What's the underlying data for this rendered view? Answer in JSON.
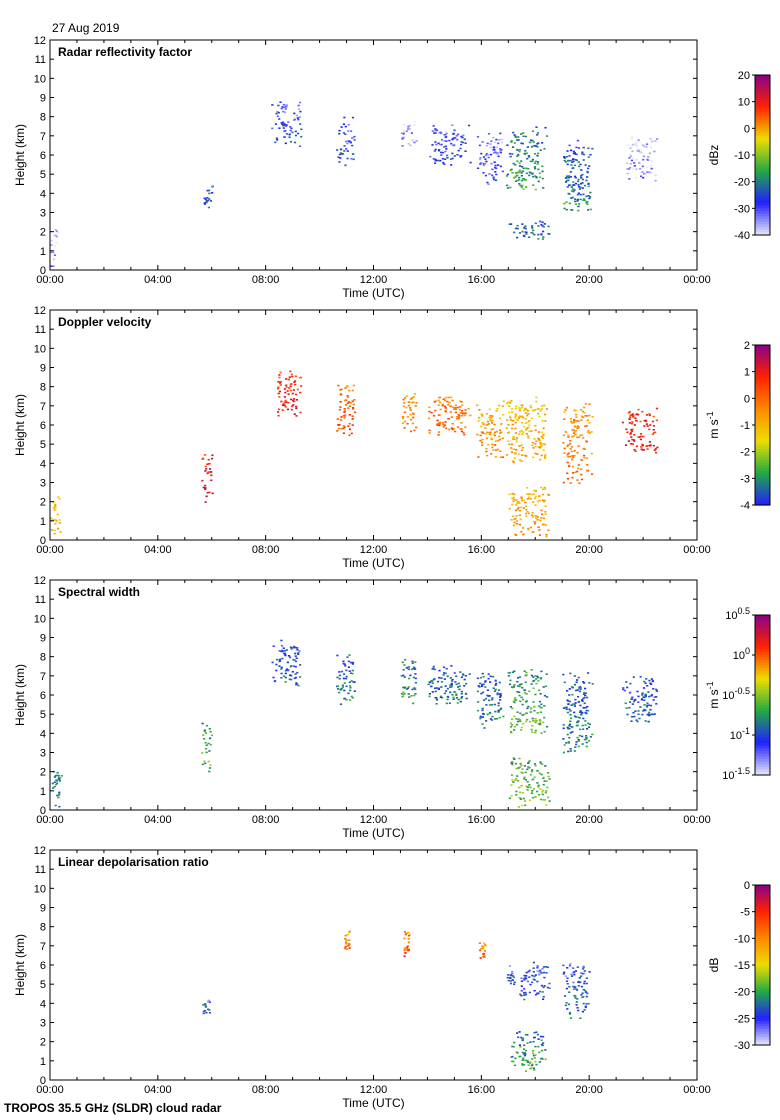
{
  "date_label": "27 Aug 2019",
  "footer": "TROPOS 35.5 GHz (SLDR) cloud radar",
  "chart_data": [
    {
      "type": "heatmap",
      "title": "Radar reflectivity factor",
      "xlabel": "Time (UTC)",
      "ylabel": "Height (km)",
      "xlim": [
        0,
        24
      ],
      "ylim": [
        0,
        12
      ],
      "xticks": [
        "00:00",
        "04:00",
        "08:00",
        "12:00",
        "16:00",
        "20:00",
        "00:00"
      ],
      "yticks": [
        "0",
        "1",
        "2",
        "3",
        "4",
        "5",
        "6",
        "7",
        "8",
        "9",
        "10",
        "11",
        "12"
      ],
      "colorbar": {
        "unit": "dBz",
        "ticks": [
          "20",
          "10",
          "0",
          "-10",
          "-20",
          "-30",
          "-40"
        ],
        "min": -40,
        "max": 20,
        "palette": [
          "#e8e8f8",
          "#2020ff",
          "#22aa44",
          "#eedd00",
          "#ff2200",
          "#880088"
        ]
      },
      "features": [
        {
          "t0": 0.0,
          "t1": 0.3,
          "h0": 0.2,
          "h1": 2.2,
          "v": 0.05
        },
        {
          "t0": 5.6,
          "t1": 6.0,
          "h0": 3.3,
          "h1": 4.5,
          "v": 0.25
        },
        {
          "t0": 8.2,
          "t1": 9.3,
          "h0": 6.5,
          "h1": 8.8,
          "v": 0.2
        },
        {
          "t0": 10.6,
          "t1": 11.3,
          "h0": 5.5,
          "h1": 8.0,
          "v": 0.2
        },
        {
          "t0": 13.0,
          "t1": 13.6,
          "h0": 6.5,
          "h1": 7.8,
          "v": 0.1
        },
        {
          "t0": 14.0,
          "t1": 15.6,
          "h0": 5.5,
          "h1": 7.6,
          "v": 0.2
        },
        {
          "t0": 15.8,
          "t1": 16.8,
          "h0": 4.5,
          "h1": 7.2,
          "v": 0.15
        },
        {
          "t0": 16.9,
          "t1": 18.4,
          "h0": 4.2,
          "h1": 7.5,
          "v": 0.35
        },
        {
          "t0": 17.0,
          "t1": 18.5,
          "h0": 1.6,
          "h1": 2.6,
          "v": 0.3
        },
        {
          "t0": 19.0,
          "t1": 20.1,
          "h0": 3.0,
          "h1": 6.8,
          "v": 0.3
        },
        {
          "t0": 21.2,
          "t1": 22.5,
          "h0": 4.7,
          "h1": 7.0,
          "v": 0.05
        }
      ]
    },
    {
      "type": "heatmap",
      "title": "Doppler velocity",
      "xlabel": "Time (UTC)",
      "ylabel": "Height (km)",
      "xlim": [
        0,
        24
      ],
      "ylim": [
        0,
        12
      ],
      "xticks": [
        "00:00",
        "04:00",
        "08:00",
        "12:00",
        "16:00",
        "20:00",
        "00:00"
      ],
      "yticks": [
        "0",
        "1",
        "2",
        "3",
        "4",
        "5",
        "6",
        "7",
        "8",
        "9",
        "10",
        "11",
        "12"
      ],
      "colorbar": {
        "unit": "m s-1",
        "ticks": [
          "2",
          "1",
          "0",
          "-1",
          "-2",
          "-3",
          "-4"
        ],
        "min": -4,
        "max": 2,
        "palette": [
          "#2020ff",
          "#22aa44",
          "#eedd00",
          "#ff8800",
          "#ff2200",
          "#880088"
        ]
      },
      "features": [
        {
          "t0": 0.0,
          "t1": 0.4,
          "h0": 0.2,
          "h1": 2.3,
          "v": 0.5
        },
        {
          "t0": 5.6,
          "t1": 6.0,
          "h0": 2.0,
          "h1": 4.6,
          "v": 0.85
        },
        {
          "t0": 8.2,
          "t1": 9.3,
          "h0": 6.5,
          "h1": 8.9,
          "v": 0.8
        },
        {
          "t0": 10.6,
          "t1": 11.3,
          "h0": 5.5,
          "h1": 8.2,
          "v": 0.7
        },
        {
          "t0": 13.0,
          "t1": 13.6,
          "h0": 5.6,
          "h1": 7.9,
          "v": 0.6
        },
        {
          "t0": 14.0,
          "t1": 15.6,
          "h0": 5.5,
          "h1": 7.6,
          "v": 0.65
        },
        {
          "t0": 15.8,
          "t1": 16.8,
          "h0": 4.3,
          "h1": 7.3,
          "v": 0.55
        },
        {
          "t0": 16.9,
          "t1": 18.4,
          "h0": 4.0,
          "h1": 7.5,
          "v": 0.5
        },
        {
          "t0": 17.0,
          "t1": 18.5,
          "h0": 0.2,
          "h1": 2.8,
          "v": 0.55
        },
        {
          "t0": 19.0,
          "t1": 20.1,
          "h0": 3.0,
          "h1": 7.2,
          "v": 0.6
        },
        {
          "t0": 21.2,
          "t1": 22.5,
          "h0": 4.6,
          "h1": 7.0,
          "v": 0.8
        }
      ]
    },
    {
      "type": "heatmap",
      "title": "Spectral width",
      "xlabel": "Time (UTC)",
      "ylabel": "Height (km)",
      "xlim": [
        0,
        24
      ],
      "ylim": [
        0,
        12
      ],
      "xticks": [
        "00:00",
        "04:00",
        "08:00",
        "12:00",
        "16:00",
        "20:00",
        "00:00"
      ],
      "yticks": [
        "0",
        "1",
        "2",
        "3",
        "4",
        "5",
        "6",
        "7",
        "8",
        "9",
        "10",
        "11",
        "12"
      ],
      "colorbar": {
        "unit": "m s-1",
        "ticks": [
          {
            "base": "10",
            "exp": "0.5"
          },
          {
            "base": "10",
            "exp": "0"
          },
          {
            "base": "10",
            "exp": "-0.5"
          },
          {
            "base": "10",
            "exp": "-1"
          },
          {
            "base": "10",
            "exp": "-1.5"
          }
        ],
        "min": -1.5,
        "max": 0.5,
        "palette": [
          "#e8e8f8",
          "#2020ff",
          "#22aa44",
          "#eedd00",
          "#ff2200",
          "#880088"
        ]
      },
      "features": [
        {
          "t0": 0.0,
          "t1": 0.4,
          "h0": 0.2,
          "h1": 2.3,
          "v": 0.35
        },
        {
          "t0": 5.6,
          "t1": 6.0,
          "h0": 2.0,
          "h1": 4.6,
          "v": 0.4
        },
        {
          "t0": 8.2,
          "t1": 9.3,
          "h0": 6.5,
          "h1": 8.9,
          "v": 0.25
        },
        {
          "t0": 10.6,
          "t1": 11.3,
          "h0": 5.5,
          "h1": 8.2,
          "v": 0.3
        },
        {
          "t0": 13.0,
          "t1": 13.6,
          "h0": 5.6,
          "h1": 7.9,
          "v": 0.35
        },
        {
          "t0": 14.0,
          "t1": 15.6,
          "h0": 5.5,
          "h1": 7.6,
          "v": 0.3
        },
        {
          "t0": 15.8,
          "t1": 16.8,
          "h0": 4.3,
          "h1": 7.3,
          "v": 0.3
        },
        {
          "t0": 16.9,
          "t1": 18.4,
          "h0": 4.0,
          "h1": 7.5,
          "v": 0.4
        },
        {
          "t0": 17.0,
          "t1": 18.5,
          "h0": 0.2,
          "h1": 2.8,
          "v": 0.45
        },
        {
          "t0": 19.0,
          "t1": 20.1,
          "h0": 3.0,
          "h1": 7.2,
          "v": 0.3
        },
        {
          "t0": 21.2,
          "t1": 22.5,
          "h0": 4.6,
          "h1": 7.0,
          "v": 0.25
        }
      ]
    },
    {
      "type": "heatmap",
      "title": "Linear depolarisation ratio",
      "xlabel": "Time (UTC)",
      "ylabel": "Height (km)",
      "xlim": [
        0,
        24
      ],
      "ylim": [
        0,
        12
      ],
      "xticks": [
        "00:00",
        "04:00",
        "08:00",
        "12:00",
        "16:00",
        "20:00",
        "00:00"
      ],
      "yticks": [
        "0",
        "1",
        "2",
        "3",
        "4",
        "5",
        "6",
        "7",
        "8",
        "9",
        "10",
        "11",
        "12"
      ],
      "colorbar": {
        "unit": "dB",
        "ticks": [
          "0",
          "-5",
          "-10",
          "-15",
          "-20",
          "-25",
          "-30"
        ],
        "min": -30,
        "max": 0,
        "palette": [
          "#e8e8f8",
          "#2020ff",
          "#22aa44",
          "#eedd00",
          "#ff8800",
          "#ff2200",
          "#880088"
        ]
      },
      "features": [
        {
          "t0": 5.6,
          "t1": 5.9,
          "h0": 3.5,
          "h1": 4.2,
          "v": 0.2
        },
        {
          "t0": 10.9,
          "t1": 11.1,
          "h0": 6.8,
          "h1": 7.8,
          "v": 0.7
        },
        {
          "t0": 13.1,
          "t1": 13.3,
          "h0": 6.5,
          "h1": 7.8,
          "v": 0.7
        },
        {
          "t0": 15.9,
          "t1": 16.3,
          "h0": 6.4,
          "h1": 7.3,
          "v": 0.7
        },
        {
          "t0": 16.9,
          "t1": 17.2,
          "h0": 5.0,
          "h1": 6.0,
          "v": 0.2
        },
        {
          "t0": 17.4,
          "t1": 18.5,
          "h0": 4.2,
          "h1": 6.2,
          "v": 0.2
        },
        {
          "t0": 17.0,
          "t1": 18.4,
          "h0": 0.5,
          "h1": 2.6,
          "v": 0.3
        },
        {
          "t0": 19.0,
          "t1": 20.0,
          "h0": 3.2,
          "h1": 6.2,
          "v": 0.2
        }
      ]
    }
  ]
}
